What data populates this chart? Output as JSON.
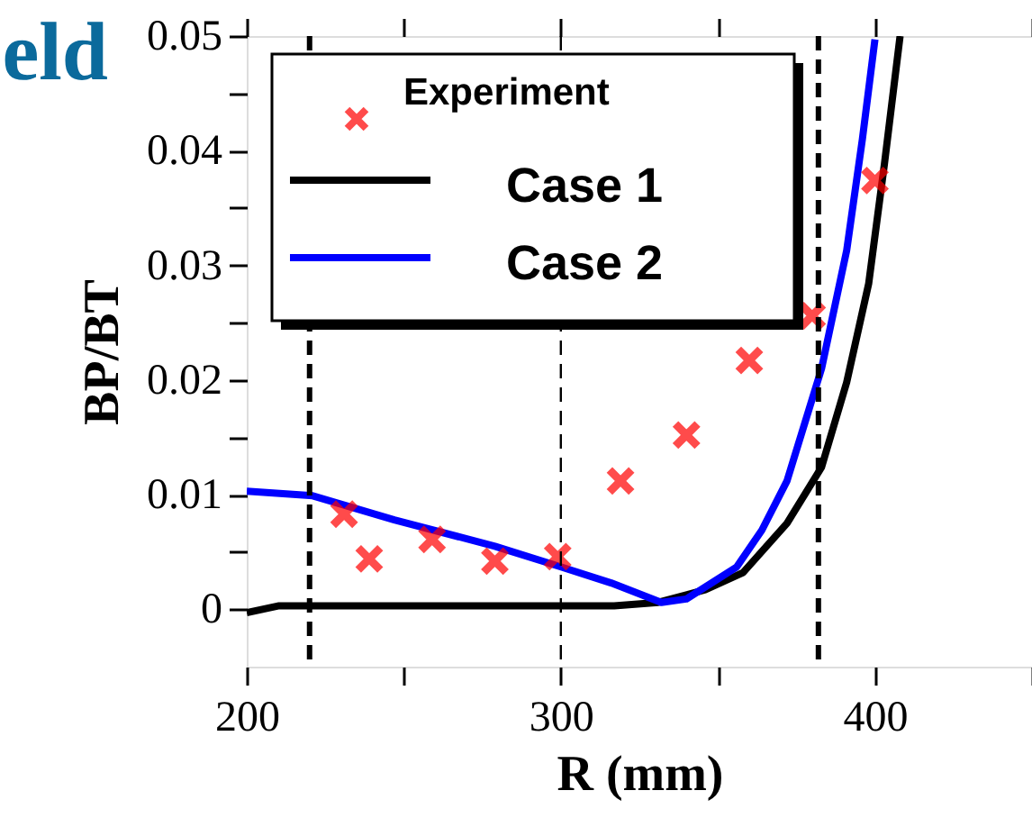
{
  "chart_data": {
    "type": "line",
    "title": "eld",
    "xlabel": "R (mm)",
    "ylabel": "BP/BT",
    "xlim": [
      200,
      450
    ],
    "xticks": [
      200,
      {
        "value": 250,
        "label": null
      },
      300,
      {
        "value": 350,
        "label": null
      },
      400,
      {
        "value": 450,
        "label": null
      }
    ],
    "ylim": [
      -0.005,
      0.05
    ],
    "yticks": [
      0,
      {
        "value": 0.005,
        "label": null
      },
      0.01,
      {
        "value": 0.015,
        "label": null
      },
      0.02,
      {
        "value": 0.025,
        "label": null
      },
      0.03,
      {
        "value": 0.035,
        "label": null
      },
      0.04,
      {
        "value": 0.045,
        "label": null
      },
      0.05
    ],
    "grid": false,
    "legend": "top left",
    "series": [
      {
        "name": "Experiment",
        "type": "scatter",
        "marker": "cross",
        "color": "#ff0000",
        "x": [
          231,
          239,
          259,
          279,
          299,
          319,
          340,
          360,
          380,
          400
        ],
        "values": [
          0.0083,
          0.0044,
          0.0061,
          0.0042,
          0.0046,
          0.0112,
          0.0152,
          0.0217,
          0.0256,
          0.0374
        ]
      },
      {
        "name": "Case 1",
        "type": "line",
        "color": "#000000",
        "line_style": "solid",
        "x": [
          200,
          210,
          221,
          317,
          331,
          346,
          358,
          372,
          383,
          391,
          398,
          403,
          408
        ],
        "values": [
          -0.0003,
          0.0003,
          0.0003,
          0.0003,
          0.0006,
          0.0017,
          0.0032,
          0.0075,
          0.0124,
          0.0198,
          0.0284,
          0.0388,
          0.05
        ]
      },
      {
        "name": "Case 2",
        "type": "line",
        "color": "#0000ff",
        "line_style": "solid",
        "x": [
          200,
          221,
          247,
          279,
          300,
          316,
          332,
          340,
          356,
          364,
          372,
          383,
          391,
          396,
          400
        ],
        "values": [
          0.0103,
          0.0099,
          0.0078,
          0.0055,
          0.0037,
          0.0023,
          0.0006,
          0.0009,
          0.0037,
          0.0069,
          0.0112,
          0.021,
          0.0313,
          0.041,
          0.0497
        ]
      }
    ],
    "ref_lines": [
      {
        "axis": "x",
        "value": 220,
        "line_style": "dashed",
        "color": "#000000"
      },
      {
        "axis": "x",
        "value": 300,
        "line_style": "dashed",
        "color": "#000000"
      },
      {
        "axis": "x",
        "value": 382,
        "line_style": "dashed",
        "color": "#000000"
      }
    ]
  }
}
